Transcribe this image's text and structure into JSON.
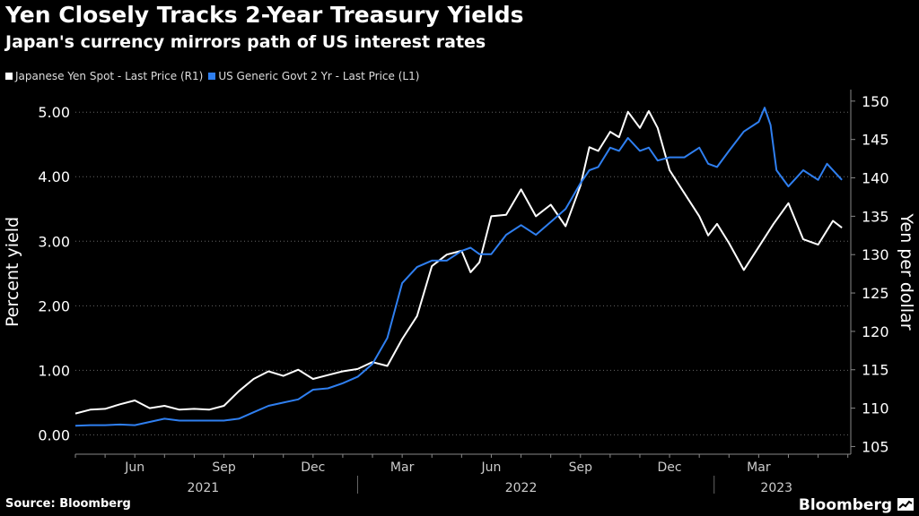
{
  "chart_data": {
    "type": "line",
    "title": "Yen Closely Tracks 2-Year Treasury Yields",
    "subtitle": "Japan's currency mirrors path of US interest rates",
    "source": "Source: Bloomberg",
    "brand": "Bloomberg",
    "ylabel_left": "Percent yield",
    "ylabel_right": "Yen per dollar",
    "ylim_left": [
      -0.3,
      5.35
    ],
    "ylim_right": [
      104,
      151.5
    ],
    "yticks_left": [
      "0.00",
      "1.00",
      "2.00",
      "3.00",
      "4.00",
      "5.00"
    ],
    "yticks_left_values": [
      0,
      1,
      2,
      3,
      4,
      5
    ],
    "yticks_right": [
      "105",
      "110",
      "115",
      "120",
      "125",
      "130",
      "135",
      "140",
      "145",
      "150"
    ],
    "yticks_right_values": [
      105,
      110,
      115,
      120,
      125,
      130,
      135,
      140,
      145,
      150
    ],
    "xlim": [
      0,
      26.1
    ],
    "month_ticks": [
      {
        "label": "Jun",
        "x": 2
      },
      {
        "label": "Sep",
        "x": 5
      },
      {
        "label": "Dec",
        "x": 8
      },
      {
        "label": "Mar",
        "x": 11
      },
      {
        "label": "Jun",
        "x": 14
      },
      {
        "label": "Sep",
        "x": 17
      },
      {
        "label": "Dec",
        "x": 20
      },
      {
        "label": "Mar",
        "x": 23
      }
    ],
    "year_labels": [
      {
        "label": "2021",
        "x": 4.3
      },
      {
        "label": "2022",
        "x": 15
      },
      {
        "label": "2023",
        "x": 23.6
      }
    ],
    "year_dividers": [
      9.5,
      21.5
    ],
    "series": [
      {
        "name": "Japanese Yen Spot - Last Price (R1)",
        "axis": "right",
        "color": "#ffffff",
        "x": [
          0,
          0.5,
          1,
          1.5,
          2,
          2.5,
          3,
          3.5,
          4,
          4.5,
          5,
          5.5,
          6,
          6.5,
          7,
          7.5,
          8,
          8.5,
          9,
          9.5,
          10,
          10.5,
          11,
          11.5,
          12,
          12.5,
          13,
          13.3,
          13.6,
          14,
          14.5,
          15,
          15.5,
          16,
          16.5,
          17,
          17.3,
          17.6,
          18,
          18.3,
          18.6,
          19,
          19.3,
          19.6,
          20,
          20.5,
          21,
          21.3,
          21.6,
          22,
          22.5,
          23,
          23.5,
          24,
          24.5,
          25,
          25.5,
          25.8
        ],
        "values": [
          109.3,
          109.8,
          109.9,
          110.5,
          111.0,
          110.0,
          110.3,
          109.8,
          109.9,
          109.8,
          110.3,
          112.2,
          113.8,
          114.8,
          114.2,
          115.0,
          113.8,
          114.3,
          114.8,
          115.1,
          116.0,
          115.5,
          119.0,
          122.0,
          128.5,
          130.0,
          130.5,
          127.7,
          129.0,
          135.0,
          135.2,
          138.5,
          135.0,
          136.5,
          133.7,
          139.0,
          144.0,
          143.5,
          146.0,
          145.3,
          148.6,
          146.5,
          148.7,
          146.5,
          141.0,
          138.0,
          135.0,
          132.5,
          134.0,
          131.5,
          128.0,
          131.0,
          134.0,
          136.7,
          132.0,
          131.3,
          134.4,
          133.5
        ]
      },
      {
        "name": "US Generic Govt 2 Yr - Last Price (L1)",
        "axis": "left",
        "color": "#2f7ff0",
        "x": [
          0,
          0.5,
          1,
          1.5,
          2,
          2.5,
          3,
          3.5,
          4,
          4.5,
          5,
          5.5,
          6,
          6.5,
          7,
          7.5,
          8,
          8.5,
          9,
          9.5,
          10,
          10.5,
          11,
          11.5,
          12,
          12.5,
          13,
          13.3,
          13.6,
          14,
          14.5,
          15,
          15.5,
          16,
          16.5,
          17,
          17.3,
          17.6,
          18,
          18.3,
          18.6,
          19,
          19.3,
          19.6,
          20,
          20.5,
          21,
          21.3,
          21.6,
          22,
          22.5,
          23,
          23.2,
          23.4,
          23.6,
          24,
          24.5,
          25,
          25.3,
          25.6,
          25.8
        ],
        "values": [
          0.14,
          0.15,
          0.15,
          0.16,
          0.15,
          0.2,
          0.25,
          0.22,
          0.22,
          0.22,
          0.22,
          0.25,
          0.35,
          0.45,
          0.5,
          0.55,
          0.7,
          0.72,
          0.8,
          0.9,
          1.1,
          1.5,
          2.35,
          2.6,
          2.7,
          2.7,
          2.85,
          2.9,
          2.8,
          2.8,
          3.1,
          3.25,
          3.1,
          3.3,
          3.5,
          3.9,
          4.1,
          4.15,
          4.45,
          4.4,
          4.6,
          4.4,
          4.45,
          4.25,
          4.3,
          4.3,
          4.45,
          4.2,
          4.15,
          4.4,
          4.7,
          4.85,
          5.07,
          4.8,
          4.1,
          3.85,
          4.1,
          3.95,
          4.2,
          4.05,
          3.95
        ]
      }
    ]
  }
}
